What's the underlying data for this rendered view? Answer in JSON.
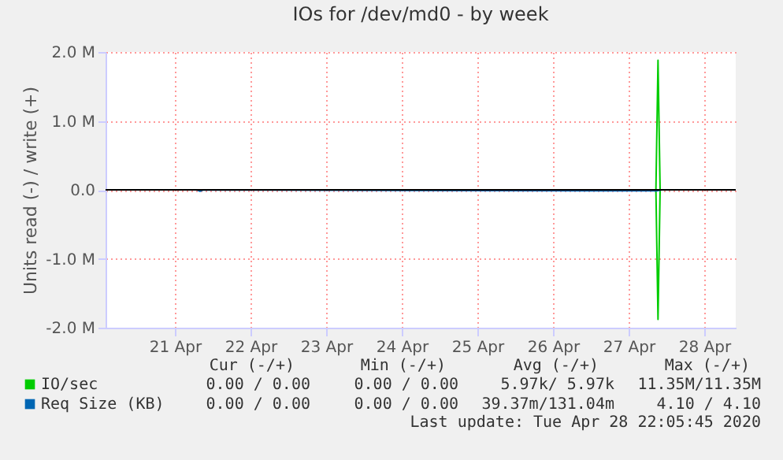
{
  "chart_data": {
    "type": "line",
    "title": "IOs for /dev/md0 - by week",
    "ylabel": "Units read (-) / write (+)",
    "xlim": [
      "2020-04-20T14:00",
      "2020-04-28T22:00"
    ],
    "xticks": [
      {
        "value": "2020-04-21T12:00",
        "label": "21 Apr"
      },
      {
        "value": "2020-04-22T12:00",
        "label": "22 Apr"
      },
      {
        "value": "2020-04-23T12:00",
        "label": "23 Apr"
      },
      {
        "value": "2020-04-24T12:00",
        "label": "24 Apr"
      },
      {
        "value": "2020-04-25T12:00",
        "label": "25 Apr"
      },
      {
        "value": "2020-04-26T12:00",
        "label": "26 Apr"
      },
      {
        "value": "2020-04-27T12:00",
        "label": "27 Apr"
      },
      {
        "value": "2020-04-28T12:00",
        "label": "28 Apr"
      }
    ],
    "ylim": [
      -2000000,
      2000000
    ],
    "yticks": [
      {
        "value": -2000000,
        "label": "-2.0 M"
      },
      {
        "value": -1000000,
        "label": "-1.0 M"
      },
      {
        "value": 0,
        "label": "0.0"
      },
      {
        "value": 1000000,
        "label": "1.0 M"
      },
      {
        "value": 2000000,
        "label": "2.0 M"
      }
    ],
    "series": [
      {
        "name": "IO/sec",
        "color": "#00cc00",
        "x": [
          "2020-04-27T00:00",
          "2020-04-27T20:40",
          "2020-04-27T21:20",
          "2020-04-27T22:00",
          "2020-04-27T22:30"
        ],
        "values": [
          0,
          0,
          1880000,
          0,
          0
        ]
      },
      {
        "color": "#00cc00",
        "x": [
          "2020-04-27T00:00",
          "2020-04-27T20:40",
          "2020-04-27T21:20",
          "2020-04-27T22:00",
          "2020-04-27T22:30"
        ],
        "values": [
          0,
          0,
          -1880000,
          0,
          0
        ]
      },
      {
        "name": "Req Size (KB)",
        "color": "#0066b3",
        "x": [
          "2020-04-21T19:00",
          "2020-04-21T20:00",
          "2020-04-21T21:00",
          "2020-04-27T00:00",
          "2020-04-27T21:00",
          "2020-04-27T22:30"
        ],
        "values": [
          0,
          -20000,
          0,
          -15000,
          -15000,
          0
        ]
      }
    ],
    "ref_lines": [
      {
        "axis": "y",
        "value": 0,
        "color": "#000000"
      }
    ],
    "grid": true,
    "legend": "bottom left",
    "annotations": [
      "Cur (-/+)",
      "Min (-/+)",
      "Avg (-/+)",
      "Max (-/+)",
      "0.00 / 0.00",
      "0.00 / 0.00",
      "5.97k/ 5.97k",
      "11.35M/11.35M",
      "0.00 / 0.00",
      "0.00 / 0.00",
      "39.37m/131.04m",
      "4.10 / 4.10",
      "Last update: Tue Apr 28 22:05:45 2020"
    ]
  }
}
